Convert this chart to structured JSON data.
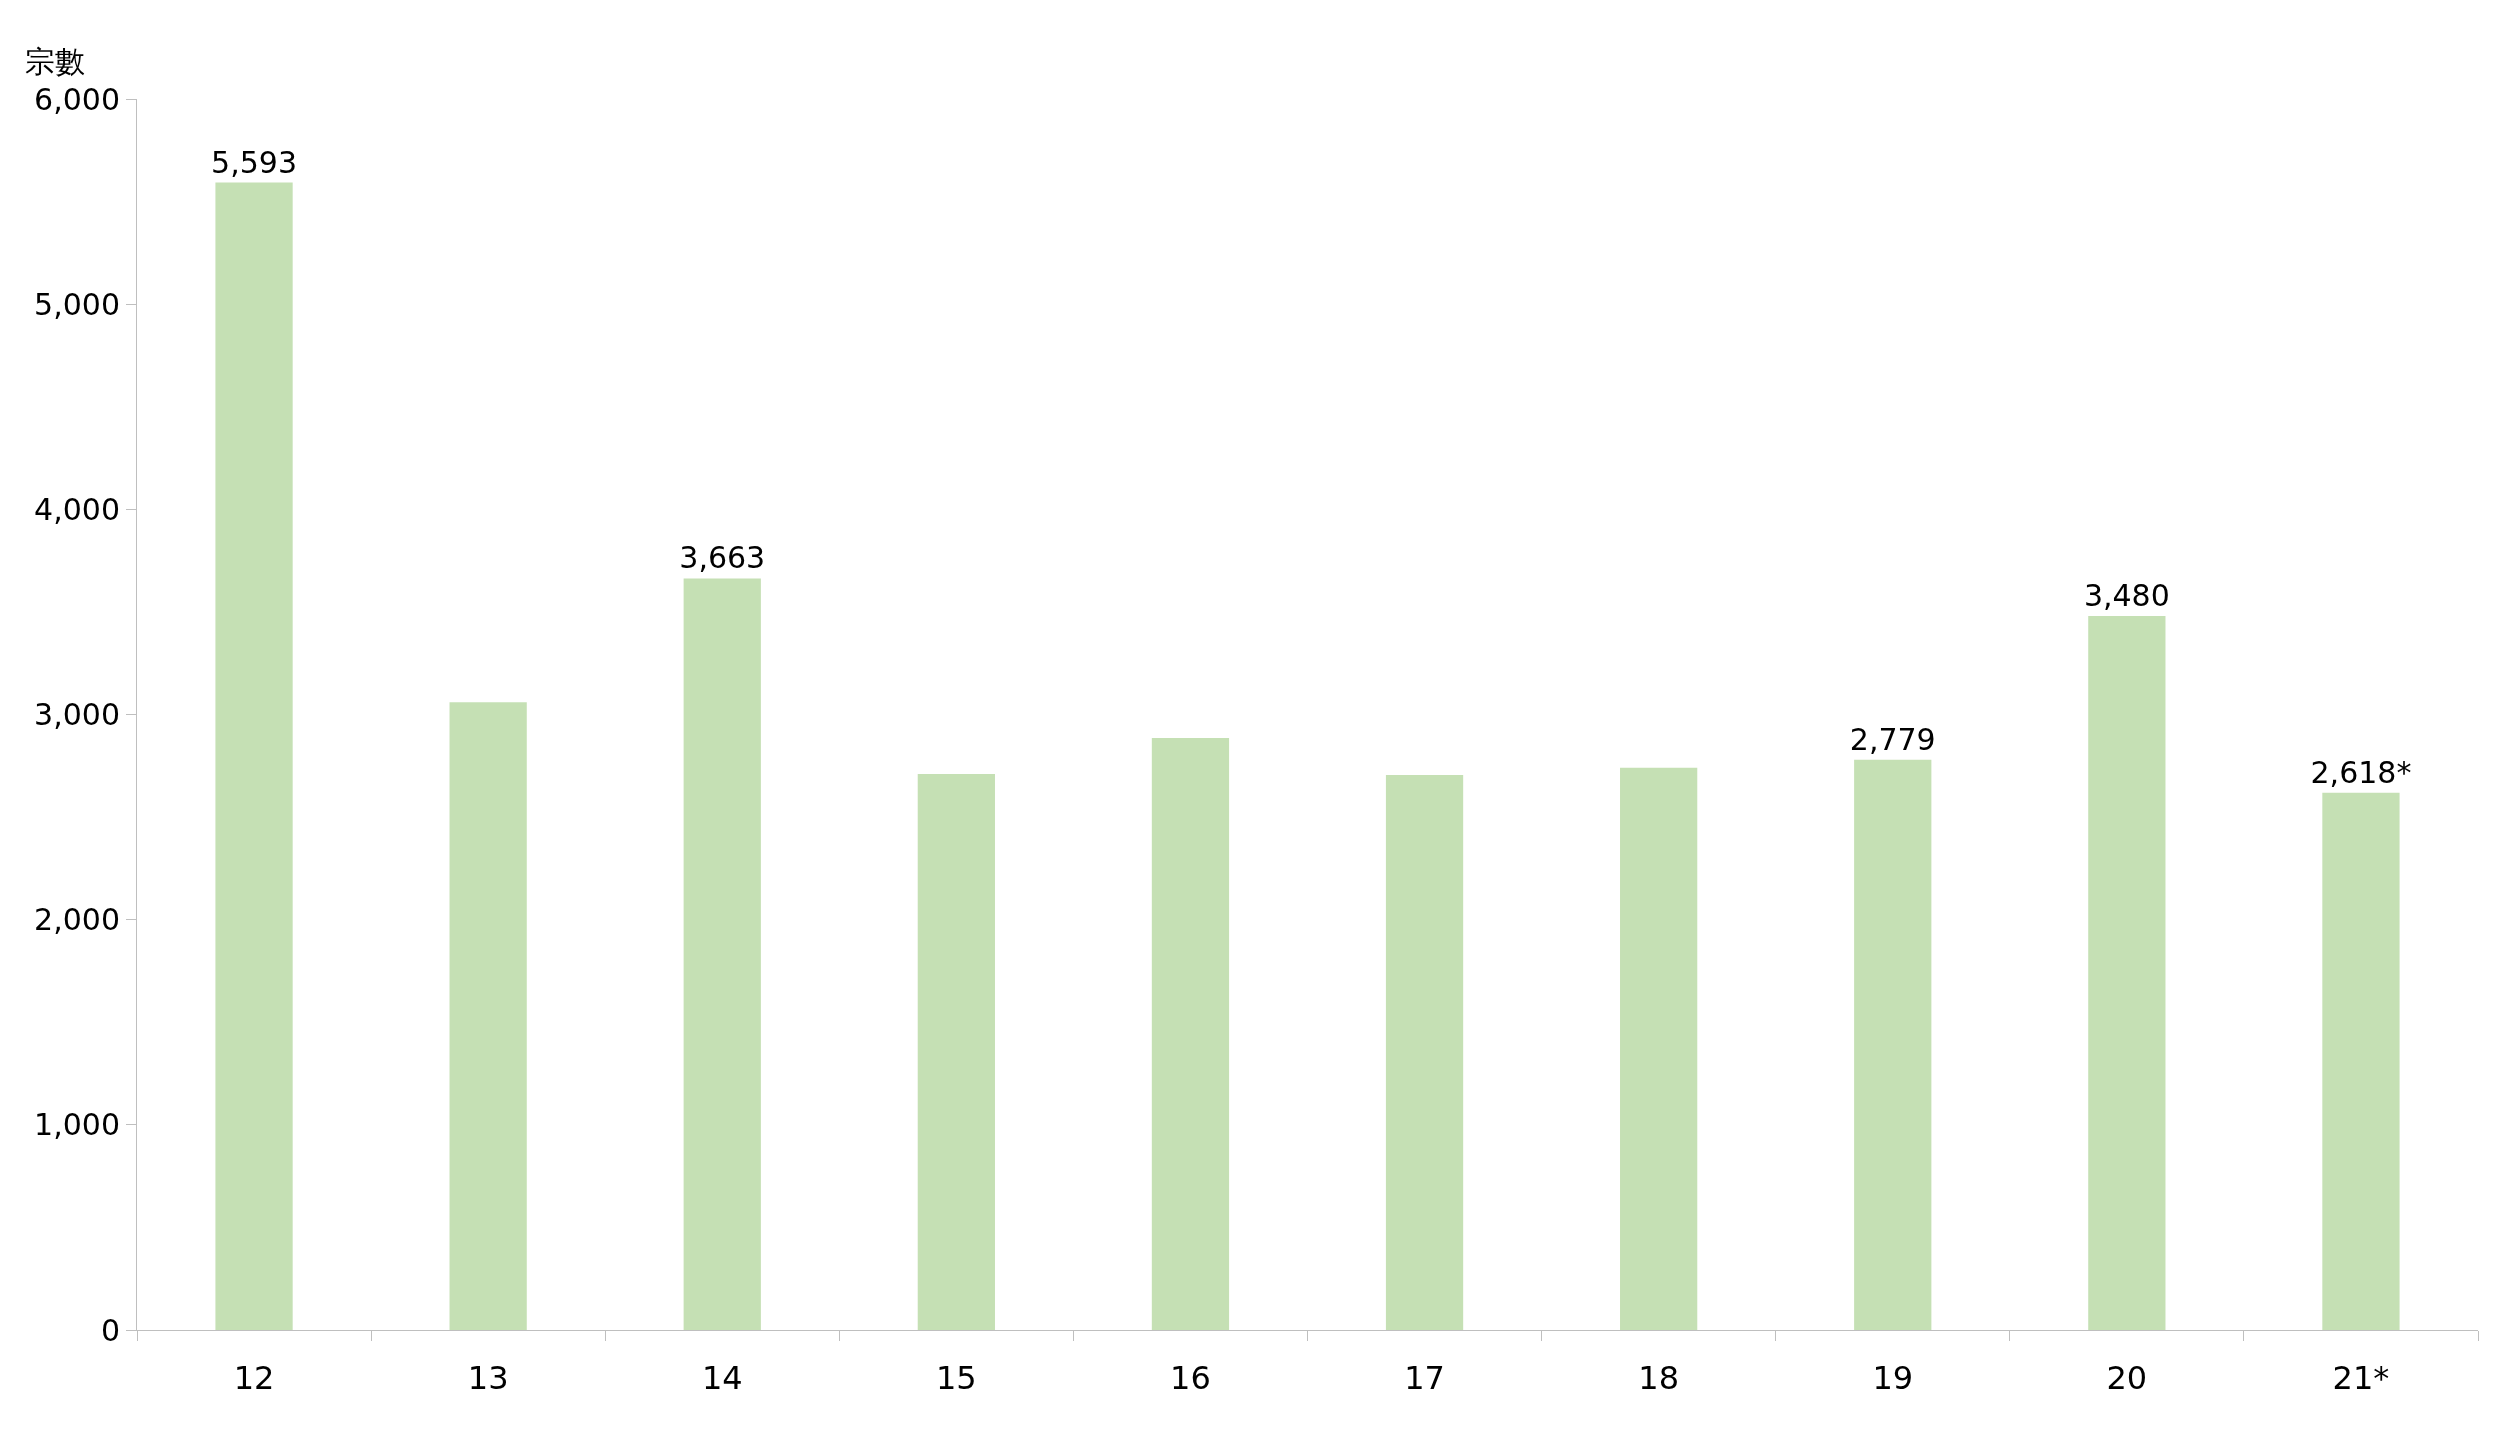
{
  "chart_data": {
    "type": "bar",
    "ylabel": "宗數",
    "categories": [
      "12",
      "13",
      "14",
      "15",
      "16",
      "17",
      "18",
      "19",
      "20",
      "21*"
    ],
    "values": [
      5593,
      3060,
      3663,
      2710,
      2885,
      2705,
      2740,
      2779,
      3480,
      2618
    ],
    "value_labels": [
      "5,593",
      null,
      "3,663",
      null,
      null,
      null,
      null,
      "2,779",
      "3,480",
      "2,618*"
    ],
    "color": "#c5e0b4",
    "ylim": [
      0,
      6000
    ],
    "yticks": [
      0,
      {
        "value": 1000,
        "label": "1,000"
      },
      {
        "value": 2000,
        "label": "2,000"
      },
      {
        "value": 3000,
        "label": "3,000"
      },
      {
        "value": 4000,
        "label": "4,000"
      },
      {
        "value": 5000,
        "label": "5,000"
      },
      {
        "value": 6000,
        "label": "6,000"
      }
    ],
    "legend": false
  }
}
